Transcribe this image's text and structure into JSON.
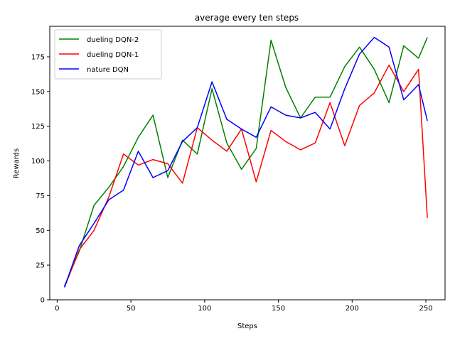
{
  "chart_data": {
    "type": "line",
    "title": "average every ten steps",
    "xlabel": "Steps",
    "ylabel": "Rewards",
    "xlim": [
      -5,
      263
    ],
    "ylim": [
      0,
      197
    ],
    "xticks": [
      0,
      50,
      100,
      150,
      200,
      250
    ],
    "yticks": [
      0,
      25,
      50,
      75,
      100,
      125,
      150,
      175
    ],
    "grid": false,
    "legend_position": "upper-left",
    "x": [
      5,
      15,
      25,
      35,
      45,
      55,
      65,
      75,
      85,
      95,
      105,
      115,
      125,
      135,
      145,
      155,
      165,
      175,
      185,
      195,
      205,
      215,
      225,
      235,
      245,
      251
    ],
    "series": [
      {
        "name": "dueling DQN-2",
        "color": "#008000",
        "values": [
          10,
          35,
          68,
          81,
          96,
          117,
          133,
          88,
          115,
          105,
          152,
          113,
          94,
          109,
          187,
          153,
          131,
          146,
          146,
          168,
          182,
          166,
          142,
          183,
          174,
          189
        ]
      },
      {
        "name": "dueling DQN-1",
        "color": "#ff0000",
        "values": [
          9,
          36,
          50,
          74,
          105,
          97,
          101,
          98,
          84,
          124,
          115,
          107,
          123,
          85,
          122,
          114,
          108,
          113,
          142,
          111,
          140,
          149,
          169,
          150,
          166,
          59
        ]
      },
      {
        "name": "nature DQN",
        "color": "#0000ff",
        "values": [
          9,
          39,
          55,
          72,
          79,
          107,
          88,
          93,
          114,
          124,
          157,
          130,
          123,
          117,
          139,
          133,
          131,
          135,
          123,
          152,
          177,
          189,
          182,
          144,
          155,
          129
        ]
      }
    ]
  }
}
